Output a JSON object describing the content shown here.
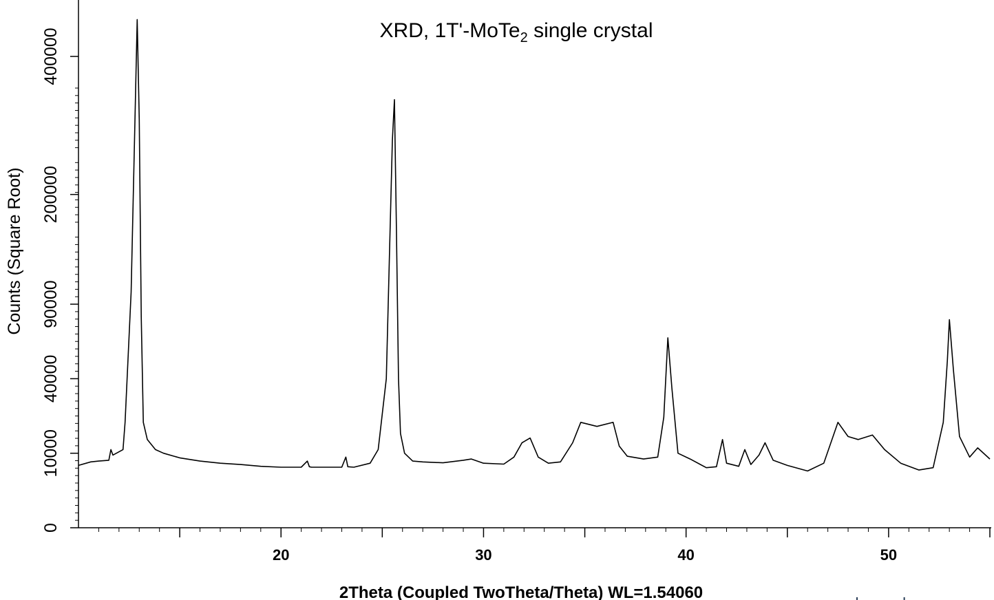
{
  "chart_data": {
    "type": "line",
    "title": "XRD, 1T'-MoTe",
    "title_subscript": "2",
    "title_suffix": " single crystal",
    "xlabel": "2Theta (Coupled TwoTheta/Theta) WL=1.54060",
    "ylabel": "Counts (Square Root)",
    "y_scale": "sqrt",
    "xlim": [
      10,
      55
    ],
    "ylim": [
      0,
      465000
    ],
    "x_tick_labels": [
      "20",
      "30",
      "40",
      "50"
    ],
    "y_tick_labels": [
      "0",
      "10000",
      "40000",
      "90000",
      "200000",
      "400000"
    ],
    "grid": false,
    "legend": "none",
    "line_color": "#000000",
    "series": [
      {
        "x": [
          10.0,
          10.6,
          11.0,
          11.5,
          11.6,
          11.7,
          12.2,
          12.3,
          12.6,
          12.9,
          13.0,
          13.1,
          13.2,
          13.4,
          13.8,
          14.2,
          15.0,
          16.0,
          17.0,
          18.0,
          19.0,
          20.0,
          21.0,
          21.3,
          21.4,
          21.5,
          22.0,
          23.0,
          23.2,
          23.3,
          23.6,
          24.4,
          24.8,
          25.2,
          25.5,
          25.6,
          25.7,
          25.8,
          25.9,
          26.1,
          26.5,
          27.0,
          28.0,
          29.0,
          29.4,
          30.0,
          31.0,
          31.5,
          31.9,
          32.3,
          32.7,
          33.2,
          33.8,
          34.4,
          34.8,
          35.6,
          36.4,
          36.7,
          37.1,
          37.9,
          38.6,
          38.9,
          39.1,
          39.3,
          39.6,
          40.2,
          41.0,
          41.5,
          41.8,
          42.0,
          42.6,
          42.9,
          43.2,
          43.6,
          43.9,
          44.3,
          45.0,
          46.0,
          46.8,
          47.5,
          48.0,
          48.5,
          49.2,
          49.8,
          50.6,
          51.5,
          52.2,
          52.7,
          52.9,
          53.0,
          53.2,
          53.5,
          54.0,
          54.4,
          55.0
        ],
        "y": [
          7000,
          7800,
          8000,
          8200,
          11000,
          9500,
          11000,
          20000,
          100000,
          465000,
          300000,
          80000,
          20000,
          14000,
          11000,
          10000,
          8800,
          8000,
          7500,
          7200,
          6800,
          6600,
          6600,
          8000,
          6700,
          6600,
          6600,
          6600,
          9000,
          6700,
          6600,
          7500,
          11000,
          40000,
          270000,
          330000,
          160000,
          40000,
          16000,
          10000,
          8000,
          7800,
          7600,
          8200,
          8500,
          7500,
          7300,
          9000,
          13000,
          14500,
          9000,
          7500,
          7800,
          13000,
          20000,
          18500,
          20000,
          12000,
          9200,
          8500,
          9000,
          22000,
          65000,
          35000,
          10000,
          8500,
          6500,
          6700,
          14000,
          7500,
          6800,
          11000,
          7200,
          9500,
          13000,
          8200,
          7000,
          5800,
          7500,
          20000,
          15000,
          14000,
          15500,
          11000,
          7500,
          6000,
          6500,
          20000,
          50000,
          78000,
          45000,
          15000,
          9000,
          11500,
          8500
        ]
      }
    ]
  },
  "watermark": "www.hqgraphene.com"
}
